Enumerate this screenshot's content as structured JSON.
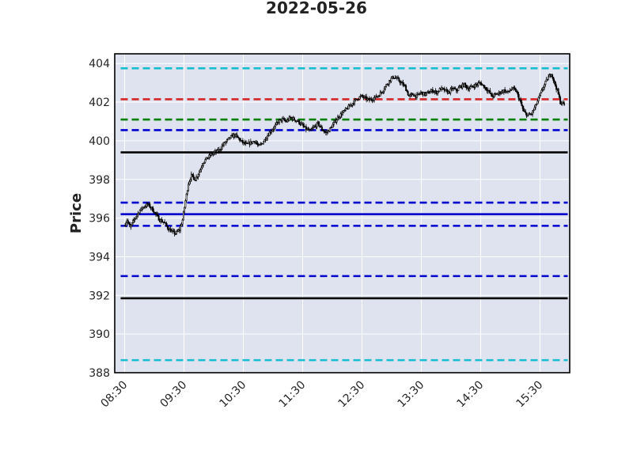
{
  "chart_data": {
    "type": "candlestick",
    "title": "2022-05-26",
    "xlabel": "",
    "ylabel": "Price",
    "ylim": [
      388,
      404.5
    ],
    "xlim": [
      "08:20",
      "16:00"
    ],
    "yticks": [
      388,
      390,
      392,
      394,
      396,
      398,
      400,
      402,
      404
    ],
    "xticks": [
      "08:30",
      "09:30",
      "10:30",
      "11:30",
      "12:30",
      "13:30",
      "14:30",
      "15:30"
    ],
    "grid": true,
    "colors": {
      "background": "#dfe3ef",
      "grid": "#ffffff",
      "candle": "#000000",
      "cyan": "#17becf",
      "red": "#d62728",
      "green": "#008000",
      "blue": "#0000cc",
      "black": "#000000"
    },
    "hlines": [
      {
        "y": 403.75,
        "color": "#17becf",
        "style": "dashed"
      },
      {
        "y": 402.15,
        "color": "#d62728",
        "style": "dashed"
      },
      {
        "y": 401.1,
        "color": "#008000",
        "style": "dashed"
      },
      {
        "y": 400.55,
        "color": "#0000cc",
        "style": "dashed"
      },
      {
        "y": 399.4,
        "color": "#000000",
        "style": "solid"
      },
      {
        "y": 396.8,
        "color": "#0000cc",
        "style": "dashed"
      },
      {
        "y": 396.2,
        "color": "#0000cc",
        "style": "solid"
      },
      {
        "y": 395.6,
        "color": "#0000cc",
        "style": "dashed"
      },
      {
        "y": 393.0,
        "color": "#0000cc",
        "style": "dashed"
      },
      {
        "y": 391.85,
        "color": "#000000",
        "style": "solid"
      },
      {
        "y": 388.65,
        "color": "#17becf",
        "style": "dashed"
      }
    ],
    "hline_span": [
      "08:26",
      "15:58"
    ],
    "price_path": [
      [
        "08:30",
        395.6
      ],
      [
        "08:33",
        395.9
      ],
      [
        "08:36",
        395.5
      ],
      [
        "08:39",
        395.8
      ],
      [
        "08:42",
        396.1
      ],
      [
        "08:46",
        396.4
      ],
      [
        "08:50",
        396.6
      ],
      [
        "08:54",
        396.7
      ],
      [
        "08:58",
        396.5
      ],
      [
        "09:02",
        396.2
      ],
      [
        "09:06",
        395.9
      ],
      [
        "09:10",
        395.8
      ],
      [
        "09:14",
        395.5
      ],
      [
        "09:18",
        395.3
      ],
      [
        "09:22",
        395.2
      ],
      [
        "09:26",
        395.4
      ],
      [
        "09:29",
        395.9
      ],
      [
        "09:32",
        396.9
      ],
      [
        "09:35",
        397.8
      ],
      [
        "09:38",
        398.2
      ],
      [
        "09:42",
        398.0
      ],
      [
        "09:46",
        398.4
      ],
      [
        "09:50",
        398.9
      ],
      [
        "09:54",
        399.1
      ],
      [
        "09:58",
        399.3
      ],
      [
        "10:02",
        399.4
      ],
      [
        "10:06",
        399.5
      ],
      [
        "10:10",
        399.8
      ],
      [
        "10:14",
        400.0
      ],
      [
        "10:18",
        400.2
      ],
      [
        "10:22",
        400.3
      ],
      [
        "10:26",
        400.1
      ],
      [
        "10:30",
        399.9
      ],
      [
        "10:34",
        399.8
      ],
      [
        "10:38",
        399.9
      ],
      [
        "10:42",
        400.0
      ],
      [
        "10:46",
        399.7
      ],
      [
        "10:50",
        399.9
      ],
      [
        "10:54",
        400.2
      ],
      [
        "10:58",
        400.5
      ],
      [
        "11:02",
        400.7
      ],
      [
        "11:06",
        401.0
      ],
      [
        "11:10",
        401.1
      ],
      [
        "11:14",
        401.0
      ],
      [
        "11:18",
        401.2
      ],
      [
        "11:22",
        401.1
      ],
      [
        "11:26",
        401.0
      ],
      [
        "11:30",
        400.8
      ],
      [
        "11:34",
        400.6
      ],
      [
        "11:38",
        400.5
      ],
      [
        "11:42",
        400.7
      ],
      [
        "11:46",
        400.9
      ],
      [
        "11:50",
        400.6
      ],
      [
        "11:54",
        400.4
      ],
      [
        "11:58",
        400.6
      ],
      [
        "12:02",
        400.9
      ],
      [
        "12:06",
        401.2
      ],
      [
        "12:10",
        401.4
      ],
      [
        "12:14",
        401.6
      ],
      [
        "12:18",
        401.8
      ],
      [
        "12:22",
        402.0
      ],
      [
        "12:26",
        402.2
      ],
      [
        "12:30",
        402.3
      ],
      [
        "12:34",
        402.2
      ],
      [
        "12:38",
        402.1
      ],
      [
        "12:42",
        402.2
      ],
      [
        "12:46",
        402.3
      ],
      [
        "12:50",
        402.5
      ],
      [
        "12:54",
        402.8
      ],
      [
        "12:58",
        403.1
      ],
      [
        "13:02",
        403.3
      ],
      [
        "13:06",
        403.2
      ],
      [
        "13:10",
        403.0
      ],
      [
        "13:14",
        402.8
      ],
      [
        "13:18",
        402.3
      ],
      [
        "13:22",
        402.4
      ],
      [
        "13:26",
        402.3
      ],
      [
        "13:30",
        402.5
      ],
      [
        "13:34",
        402.4
      ],
      [
        "13:38",
        402.5
      ],
      [
        "13:42",
        402.6
      ],
      [
        "13:46",
        402.5
      ],
      [
        "13:50",
        402.7
      ],
      [
        "13:54",
        402.6
      ],
      [
        "13:58",
        402.5
      ],
      [
        "14:02",
        402.7
      ],
      [
        "14:06",
        402.6
      ],
      [
        "14:10",
        402.8
      ],
      [
        "14:14",
        402.9
      ],
      [
        "14:18",
        402.7
      ],
      [
        "14:22",
        402.8
      ],
      [
        "14:26",
        402.9
      ],
      [
        "14:30",
        403.0
      ],
      [
        "14:34",
        402.8
      ],
      [
        "14:38",
        402.6
      ],
      [
        "14:42",
        402.3
      ],
      [
        "14:46",
        402.4
      ],
      [
        "14:50",
        402.5
      ],
      [
        "14:54",
        402.6
      ],
      [
        "14:58",
        402.5
      ],
      [
        "15:02",
        402.7
      ],
      [
        "15:06",
        402.6
      ],
      [
        "15:10",
        402.1
      ],
      [
        "15:14",
        401.5
      ],
      [
        "15:18",
        401.3
      ],
      [
        "15:22",
        401.4
      ],
      [
        "15:26",
        401.8
      ],
      [
        "15:30",
        402.3
      ],
      [
        "15:34",
        402.8
      ],
      [
        "15:38",
        403.2
      ],
      [
        "15:42",
        403.5
      ],
      [
        "15:45",
        403.0
      ],
      [
        "15:48",
        402.6
      ],
      [
        "15:51",
        402.0
      ],
      [
        "15:54",
        401.9
      ]
    ]
  }
}
